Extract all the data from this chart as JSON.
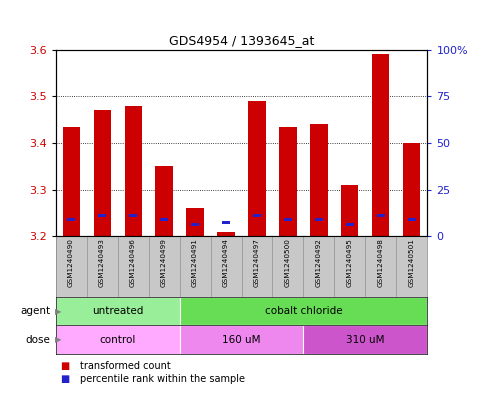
{
  "title": "GDS4954 / 1393645_at",
  "samples": [
    "GSM1240490",
    "GSM1240493",
    "GSM1240496",
    "GSM1240499",
    "GSM1240491",
    "GSM1240494",
    "GSM1240497",
    "GSM1240500",
    "GSM1240492",
    "GSM1240495",
    "GSM1240498",
    "GSM1240501"
  ],
  "red_values": [
    3.435,
    3.47,
    3.48,
    3.35,
    3.26,
    3.21,
    3.49,
    3.435,
    3.44,
    3.31,
    3.59,
    3.4
  ],
  "blue_values": [
    3.235,
    3.245,
    3.245,
    3.235,
    3.225,
    3.23,
    3.245,
    3.235,
    3.235,
    3.225,
    3.245,
    3.235
  ],
  "ymin": 3.2,
  "ymax": 3.6,
  "y_ticks_left": [
    3.2,
    3.3,
    3.4,
    3.5,
    3.6
  ],
  "y_ticks_right_labels": [
    "0",
    "25",
    "50",
    "75",
    "100%"
  ],
  "y_ticks_right_vals": [
    3.2,
    3.3,
    3.4,
    3.5,
    3.6
  ],
  "agent_groups": [
    {
      "label": "untreated",
      "start": 0,
      "end": 4,
      "color": "#99EE99"
    },
    {
      "label": "cobalt chloride",
      "start": 4,
      "end": 12,
      "color": "#66DD55"
    }
  ],
  "dose_groups": [
    {
      "label": "control",
      "start": 0,
      "end": 4,
      "color": "#FFAAFF"
    },
    {
      "label": "160 uM",
      "start": 4,
      "end": 8,
      "color": "#EE88EE"
    },
    {
      "label": "310 uM",
      "start": 8,
      "end": 12,
      "color": "#CC55CC"
    }
  ],
  "bar_color_red": "#CC0000",
  "bar_color_blue": "#2222CC",
  "bar_width": 0.55,
  "xlabel_samples_bg": "#C8C8C8",
  "tick_label_color_left": "#CC0000",
  "tick_label_color_right": "#2222CC",
  "legend_red_label": "transformed count",
  "legend_blue_label": "percentile rank within the sample"
}
